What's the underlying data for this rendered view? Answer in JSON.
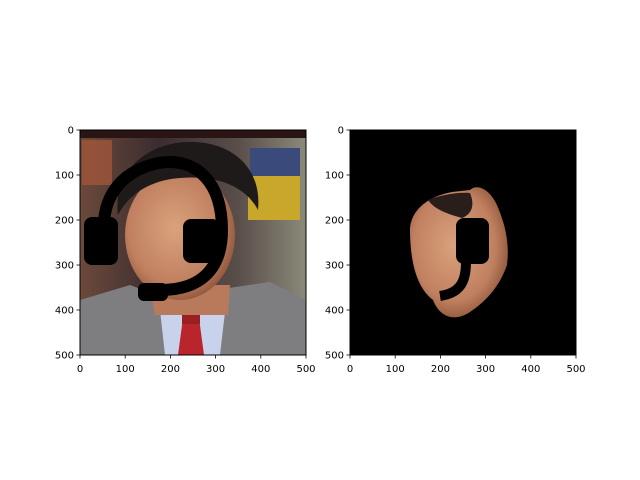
{
  "figure": {
    "background": "#ffffff",
    "panels": [
      {
        "id": "left",
        "content": "photo of man in grey suit with black headset overlay",
        "xticks": [
          "0",
          "100",
          "200",
          "300",
          "400",
          "500"
        ],
        "yticks": [
          "0",
          "100",
          "200",
          "300",
          "400",
          "500"
        ]
      },
      {
        "id": "right",
        "content": "segmented face region on black background",
        "xticks": [
          "0",
          "100",
          "200",
          "300",
          "400",
          "500"
        ],
        "yticks": [
          "0",
          "100",
          "200",
          "300",
          "400",
          "500"
        ]
      }
    ]
  },
  "chart_data": [
    {
      "type": "image",
      "title": "",
      "xlabel": "",
      "ylabel": "",
      "xlim": [
        0,
        500
      ],
      "ylim": [
        500,
        0
      ],
      "xticks": [
        0,
        100,
        200,
        300,
        400,
        500
      ],
      "yticks": [
        0,
        100,
        200,
        300,
        400,
        500
      ],
      "grid": false,
      "legend": "none",
      "colors": {
        "headset": "#000000",
        "suit": "#7f7f80",
        "tie": "#b8252b",
        "skin": "#c89070"
      }
    },
    {
      "type": "image",
      "title": "",
      "xlabel": "",
      "ylabel": "",
      "xlim": [
        0,
        500
      ],
      "ylim": [
        500,
        0
      ],
      "xticks": [
        0,
        100,
        200,
        300,
        400,
        500
      ],
      "yticks": [
        0,
        100,
        200,
        300,
        400,
        500
      ],
      "grid": false,
      "legend": "none",
      "colors": {
        "background": "#000000",
        "skin": "#c89070"
      }
    }
  ]
}
